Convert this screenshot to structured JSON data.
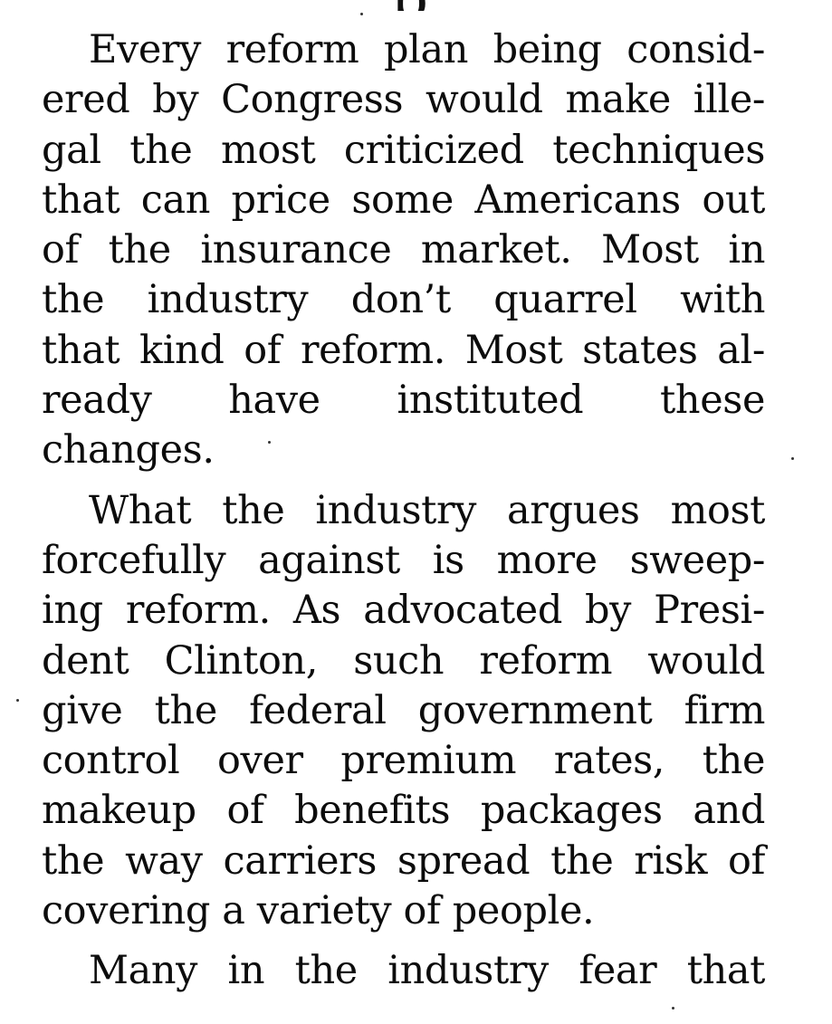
{
  "article": {
    "paragraphs": [
      {
        "lines": [
          "Every reform plan being consid-",
          "ered by Congress would make ille-",
          "gal the most criticized techniques",
          "that can price some Americans out",
          "of the insurance market. Most in",
          "the industry don’t quarrel with",
          "that kind of reform. Most states al-",
          "ready have instituted these",
          "changes."
        ]
      },
      {
        "lines": [
          "What the industry argues most",
          "forcefully against is more sweep-",
          "ing reform. As advocated by Presi-",
          "dent Clinton, such reform would",
          "give the federal government firm",
          "control over premium rates, the",
          "makeup of benefits packages and",
          "the way carriers spread the risk of",
          "covering a variety of people."
        ]
      },
      {
        "lines": [
          "Many in the industry fear that"
        ]
      }
    ]
  }
}
